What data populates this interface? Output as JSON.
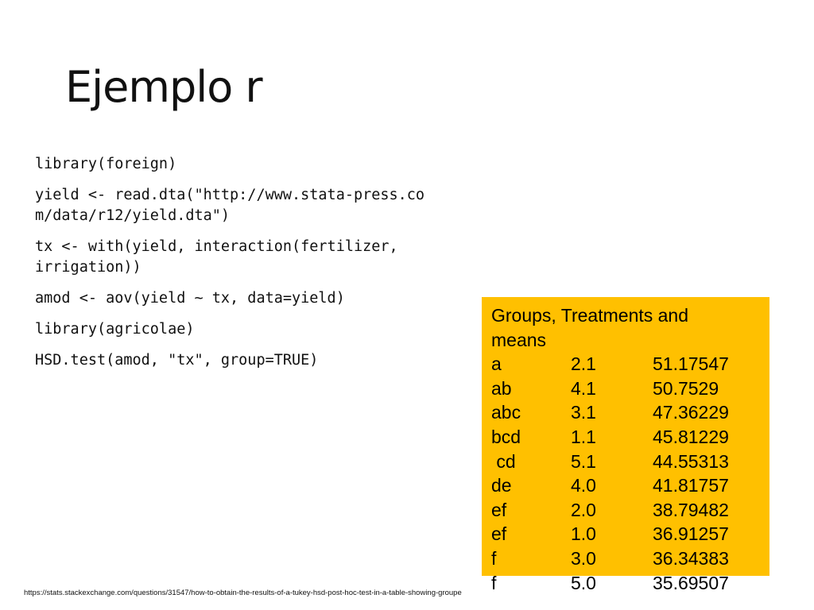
{
  "slide": {
    "title": "Ejemplo r"
  },
  "code": {
    "lines": [
      "library(foreign)",
      "yield <- read.dta(\"http://www.stata-press.com/data/r12/yield.dta\")",
      "tx <- with(yield, interaction(fertilizer, irrigation))",
      "amod <- aov(yield ~ tx, data=yield)",
      "library(agricolae)",
      "HSD.test(amod, \"tx\", group=TRUE)"
    ]
  },
  "results": {
    "heading": "Groups, Treatments and means",
    "background_color": "#ffc000",
    "rows": [
      {
        "group": "a",
        "treatment": "2.1",
        "mean": "51.17547"
      },
      {
        "group": "ab",
        "treatment": "4.1",
        "mean": "50.7529"
      },
      {
        "group": "abc",
        "treatment": "3.1",
        "mean": "47.36229"
      },
      {
        "group": "bcd",
        "treatment": "1.1",
        "mean": "45.81229"
      },
      {
        "group": " cd",
        "treatment": "5.1",
        "mean": "44.55313"
      },
      {
        "group": "de",
        "treatment": "4.0",
        "mean": "41.81757"
      },
      {
        "group": "ef",
        "treatment": "2.0",
        "mean": "38.79482"
      },
      {
        "group": "ef",
        "treatment": "1.0",
        "mean": "36.91257"
      },
      {
        "group": "f",
        "treatment": "3.0",
        "mean": "36.34383"
      },
      {
        "group": "f",
        "treatment": "5.0",
        "mean": "35.69507"
      }
    ]
  },
  "footer": {
    "source_url": "https://stats.stackexchange.com/questions/31547/how-to-obtain-the-results-of-a-tukey-hsd-post-hoc-test-in-a-table-showing-groupe"
  }
}
